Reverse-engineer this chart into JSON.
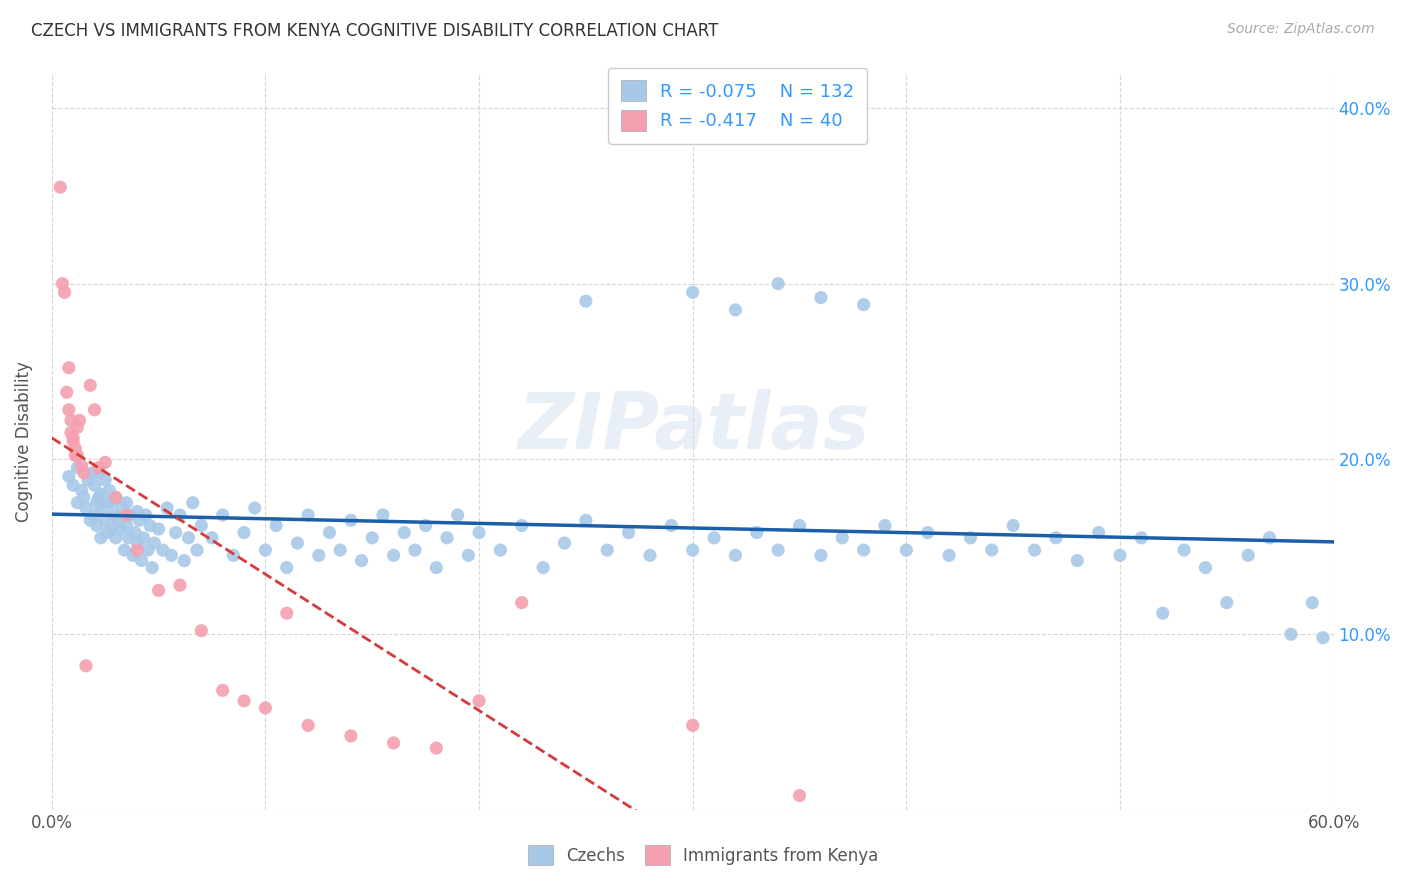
{
  "title": "CZECH VS IMMIGRANTS FROM KENYA COGNITIVE DISABILITY CORRELATION CHART",
  "source": "Source: ZipAtlas.com",
  "ylabel": "Cognitive Disability",
  "xlim": [
    0.0,
    0.6
  ],
  "ylim": [
    0.0,
    0.42
  ],
  "legend_r1": "-0.075",
  "legend_n1": "132",
  "legend_r2": "-0.417",
  "legend_n2": "40",
  "blue_color": "#a8c8e8",
  "pink_color": "#f4a0b0",
  "blue_line_color": "#1a5fa8",
  "pink_line_color": "#d63a3a",
  "watermark": "ZIPatlas",
  "legend_label1": "Czechs",
  "legend_label2": "Immigrants from Kenya",
  "blue_x": [
    0.008,
    0.01,
    0.012,
    0.012,
    0.014,
    0.015,
    0.016,
    0.017,
    0.018,
    0.019,
    0.02,
    0.02,
    0.021,
    0.021,
    0.022,
    0.022,
    0.023,
    0.023,
    0.024,
    0.025,
    0.025,
    0.026,
    0.026,
    0.027,
    0.028,
    0.028,
    0.029,
    0.03,
    0.03,
    0.031,
    0.032,
    0.033,
    0.034,
    0.035,
    0.035,
    0.036,
    0.037,
    0.038,
    0.039,
    0.04,
    0.04,
    0.041,
    0.042,
    0.043,
    0.044,
    0.045,
    0.046,
    0.047,
    0.048,
    0.05,
    0.052,
    0.054,
    0.056,
    0.058,
    0.06,
    0.062,
    0.064,
    0.066,
    0.068,
    0.07,
    0.075,
    0.08,
    0.085,
    0.09,
    0.095,
    0.1,
    0.105,
    0.11,
    0.115,
    0.12,
    0.125,
    0.13,
    0.135,
    0.14,
    0.145,
    0.15,
    0.155,
    0.16,
    0.165,
    0.17,
    0.175,
    0.18,
    0.185,
    0.19,
    0.195,
    0.2,
    0.21,
    0.22,
    0.23,
    0.24,
    0.25,
    0.26,
    0.27,
    0.28,
    0.29,
    0.3,
    0.31,
    0.32,
    0.33,
    0.34,
    0.35,
    0.36,
    0.37,
    0.38,
    0.39,
    0.4,
    0.41,
    0.42,
    0.43,
    0.44,
    0.45,
    0.46,
    0.47,
    0.48,
    0.49,
    0.5,
    0.51,
    0.52,
    0.53,
    0.54,
    0.55,
    0.56,
    0.57,
    0.58,
    0.59,
    0.595,
    0.25,
    0.3,
    0.32,
    0.34,
    0.36,
    0.38
  ],
  "blue_y": [
    0.19,
    0.185,
    0.175,
    0.195,
    0.182,
    0.178,
    0.172,
    0.188,
    0.165,
    0.192,
    0.168,
    0.185,
    0.175,
    0.162,
    0.178,
    0.192,
    0.155,
    0.18,
    0.172,
    0.165,
    0.188,
    0.175,
    0.158,
    0.182,
    0.16,
    0.175,
    0.168,
    0.155,
    0.178,
    0.165,
    0.16,
    0.172,
    0.148,
    0.162,
    0.175,
    0.155,
    0.168,
    0.145,
    0.158,
    0.17,
    0.152,
    0.165,
    0.142,
    0.155,
    0.168,
    0.148,
    0.162,
    0.138,
    0.152,
    0.16,
    0.148,
    0.172,
    0.145,
    0.158,
    0.168,
    0.142,
    0.155,
    0.175,
    0.148,
    0.162,
    0.155,
    0.168,
    0.145,
    0.158,
    0.172,
    0.148,
    0.162,
    0.138,
    0.152,
    0.168,
    0.145,
    0.158,
    0.148,
    0.165,
    0.142,
    0.155,
    0.168,
    0.145,
    0.158,
    0.148,
    0.162,
    0.138,
    0.155,
    0.168,
    0.145,
    0.158,
    0.148,
    0.162,
    0.138,
    0.152,
    0.165,
    0.148,
    0.158,
    0.145,
    0.162,
    0.148,
    0.155,
    0.145,
    0.158,
    0.148,
    0.162,
    0.145,
    0.155,
    0.148,
    0.162,
    0.148,
    0.158,
    0.145,
    0.155,
    0.148,
    0.162,
    0.148,
    0.155,
    0.142,
    0.158,
    0.145,
    0.155,
    0.112,
    0.148,
    0.138,
    0.118,
    0.145,
    0.155,
    0.1,
    0.118,
    0.098,
    0.29,
    0.295,
    0.285,
    0.3,
    0.292,
    0.288
  ],
  "pink_x": [
    0.004,
    0.005,
    0.006,
    0.007,
    0.008,
    0.008,
    0.009,
    0.009,
    0.01,
    0.01,
    0.011,
    0.011,
    0.012,
    0.012,
    0.013,
    0.014,
    0.015,
    0.016,
    0.018,
    0.02,
    0.022,
    0.025,
    0.03,
    0.035,
    0.04,
    0.05,
    0.06,
    0.07,
    0.08,
    0.09,
    0.1,
    0.11,
    0.12,
    0.14,
    0.16,
    0.18,
    0.2,
    0.22,
    0.3,
    0.35
  ],
  "pink_y": [
    0.355,
    0.3,
    0.295,
    0.238,
    0.252,
    0.228,
    0.222,
    0.215,
    0.212,
    0.21,
    0.206,
    0.202,
    0.202,
    0.218,
    0.222,
    0.196,
    0.192,
    0.082,
    0.242,
    0.228,
    0.195,
    0.198,
    0.178,
    0.168,
    0.148,
    0.125,
    0.128,
    0.102,
    0.068,
    0.062,
    0.058,
    0.112,
    0.048,
    0.042,
    0.038,
    0.035,
    0.062,
    0.118,
    0.048,
    0.008
  ]
}
